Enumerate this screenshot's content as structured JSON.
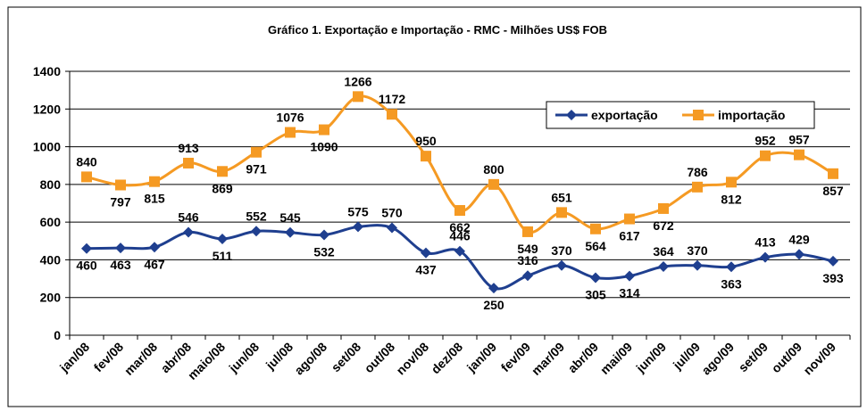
{
  "chart_data": {
    "type": "line",
    "title": "Gráfico 1. Exportação e Importação - RMC - Milhões US$ FOB",
    "categories": [
      "jan/08",
      "fev/08",
      "mar/08",
      "abr/08",
      "maio/08",
      "jun/08",
      "jul/08",
      "ago/08",
      "set/08",
      "out/08",
      "nov/08",
      "dez/08",
      "jan/09",
      "fev/09",
      "mar/09",
      "abr/09",
      "mai/09",
      "jun/09",
      "jul/09",
      "ago/09",
      "set/09",
      "out/09",
      "nov/09"
    ],
    "series": [
      {
        "name": "exportação",
        "color": "#1f3f8f",
        "marker": "diamond",
        "values": [
          460,
          463,
          467,
          546,
          511,
          552,
          545,
          532,
          575,
          570,
          437,
          446,
          250,
          316,
          370,
          305,
          314,
          364,
          370,
          363,
          413,
          429,
          393
        ]
      },
      {
        "name": "importação",
        "color": "#f59a23",
        "marker": "square",
        "values": [
          840,
          797,
          815,
          913,
          869,
          971,
          1076,
          1090,
          1266,
          1172,
          950,
          662,
          800,
          549,
          651,
          564,
          617,
          672,
          786,
          812,
          952,
          957,
          857
        ]
      }
    ],
    "ylim": [
      0,
      1400
    ],
    "yticks": [
      0,
      200,
      400,
      600,
      800,
      1000,
      1200,
      1400
    ],
    "grid": true,
    "smooth": true,
    "legend": "upper right"
  }
}
